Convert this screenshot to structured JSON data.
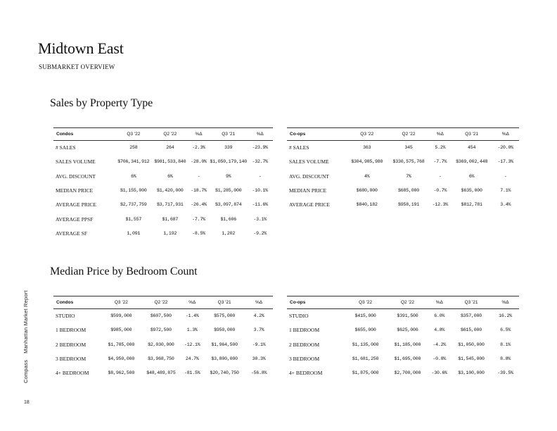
{
  "page": {
    "title": "Midtown East",
    "subtitle": "SUBMARKET OVERVIEW",
    "side_brand": "Compass",
    "side_report": "Manhattan Market Report",
    "page_number": "18"
  },
  "sales": {
    "title": "Sales by Property Type",
    "condos": {
      "header": [
        "Condos",
        "Q3 '22",
        "Q2 '22",
        "%Δ",
        "Q3 '21",
        "%Δ"
      ],
      "rows": [
        [
          "# SALES",
          "258",
          "264",
          "-2.3%",
          "339",
          "-23.9%"
        ],
        [
          "SALES VOLUME",
          "$706,341,912",
          "$981,533,840",
          "-28.0%",
          "$1,050,179,140",
          "-32.7%"
        ],
        [
          "AVG. DISCOUNT",
          "6%",
          "6%",
          "-",
          "9%",
          "-"
        ],
        [
          "MEDIAN PRICE",
          "$1,155,000",
          "$1,420,000",
          "-18.7%",
          "$1,285,000",
          "-10.1%"
        ],
        [
          "AVERAGE PRICE",
          "$2,737,759",
          "$3,717,931",
          "-26.4%",
          "$3,097,874",
          "-11.6%"
        ],
        [
          "AVERAGE PPSF",
          "$1,557",
          "$1,687",
          "-7.7%",
          "$1,606",
          "-3.1%"
        ],
        [
          "AVERAGE SF",
          "1,091",
          "1,192",
          "-8.5%",
          "1,202",
          "-9.2%"
        ]
      ]
    },
    "coops": {
      "header": [
        "Co-ops",
        "Q3 '22",
        "Q2 '22",
        "%Δ",
        "Q3 '21",
        "%Δ"
      ],
      "rows": [
        [
          "# SALES",
          "363",
          "345",
          "5.2%",
          "454",
          "-20.0%"
        ],
        [
          "SALES VOLUME",
          "$304,985,980",
          "$330,575,768",
          "-7.7%",
          "$369,002,448",
          "-17.3%"
        ],
        [
          "AVG. DISCOUNT",
          "4%",
          "7%",
          "-",
          "6%",
          "-"
        ],
        [
          "MEDIAN PRICE",
          "$680,000",
          "$685,000",
          "-0.7%",
          "$635,000",
          "7.1%"
        ],
        [
          "AVERAGE PRICE",
          "$840,182",
          "$958,191",
          "-12.3%",
          "$812,781",
          "3.4%"
        ]
      ]
    }
  },
  "bedroom": {
    "title": "Median Price by Bedroom Count",
    "condos": {
      "header": [
        "Condos",
        "Q3 '22",
        "Q2 '22",
        "%Δ",
        "Q3 '21",
        "%Δ"
      ],
      "rows": [
        [
          "STUDIO",
          "$599,000",
          "$607,500",
          "-1.4%",
          "$575,000",
          "4.2%"
        ],
        [
          "1 BEDROOM",
          "$985,000",
          "$972,500",
          "1.3%",
          "$950,000",
          "3.7%"
        ],
        [
          "2 BEDROOM",
          "$1,785,000",
          "$2,030,000",
          "-12.1%",
          "$1,964,500",
          "-9.1%"
        ],
        [
          "3 BEDROOM",
          "$4,950,000",
          "$3,968,750",
          "24.7%",
          "$3,800,000",
          "30.3%"
        ],
        [
          "4+ BEDROOM",
          "$8,962,500",
          "$48,489,875",
          "-81.5%",
          "$20,740,750",
          "-56.8%"
        ]
      ]
    },
    "coops": {
      "header": [
        "Co-ops",
        "Q3 '22",
        "Q2 '22",
        "%Δ",
        "Q3 '21",
        "%Δ"
      ],
      "rows": [
        [
          "STUDIO",
          "$415,000",
          "$391,500",
          "6.0%",
          "$357,000",
          "16.2%"
        ],
        [
          "1 BEDROOM",
          "$655,000",
          "$625,000",
          "4.8%",
          "$615,000",
          "6.5%"
        ],
        [
          "2 BEDROOM",
          "$1,135,000",
          "$1,185,000",
          "-4.2%",
          "$1,050,000",
          "8.1%"
        ],
        [
          "3 BEDROOM",
          "$1,681,250",
          "$1,695,000",
          "-0.8%",
          "$1,545,000",
          "8.8%"
        ],
        [
          "4+ BEDROOM",
          "$1,875,000",
          "$2,700,000",
          "-30.6%",
          "$3,100,000",
          "-39.5%"
        ]
      ]
    }
  }
}
